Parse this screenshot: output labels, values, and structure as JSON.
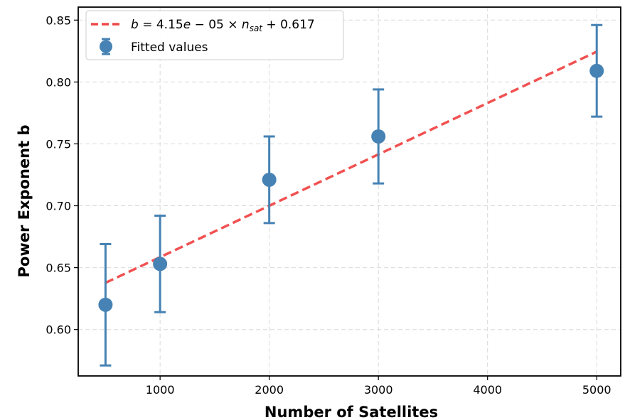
{
  "chart_data": {
    "type": "scatter",
    "title": "",
    "xlabel": "Number of Satellites",
    "ylabel": "Power Exponent b",
    "xlim": [
      250,
      5220
    ],
    "ylim": [
      0.5625,
      0.8605
    ],
    "x_ticks": [
      1000,
      2000,
      3000,
      4000,
      5000
    ],
    "x_tick_labels": [
      "1000",
      "2000",
      "3000",
      "4000",
      "5000"
    ],
    "y_ticks": [
      0.6,
      0.65,
      0.7,
      0.75,
      0.8,
      0.85
    ],
    "y_tick_labels": [
      "0.60",
      "0.65",
      "0.70",
      "0.75",
      "0.80",
      "0.85"
    ],
    "grid": true,
    "legend_position": "top-left",
    "series": [
      {
        "name": "Fitted values",
        "kind": "errorbar",
        "color": "#4682b4",
        "x": [
          500,
          1000,
          2000,
          3000,
          5000
        ],
        "y": [
          0.62,
          0.653,
          0.721,
          0.756,
          0.809
        ],
        "yerr": [
          0.049,
          0.039,
          0.035,
          0.038,
          0.037
        ]
      },
      {
        "name": "b = 4.15e − 05 × n_sat + 0.617",
        "kind": "fit-line",
        "color": "#f04848",
        "slope": 4.15e-05,
        "intercept": 0.617,
        "x_range": [
          500,
          5000
        ]
      }
    ],
    "legend": {
      "fit_prefix": "b",
      "fit_mid": " = 4.15",
      "fit_e": "e",
      "fit_exp": " − 05 × ",
      "fit_n": "n",
      "fit_sub": "sat",
      "fit_tail": " + 0.617",
      "points_label": "Fitted values"
    }
  }
}
